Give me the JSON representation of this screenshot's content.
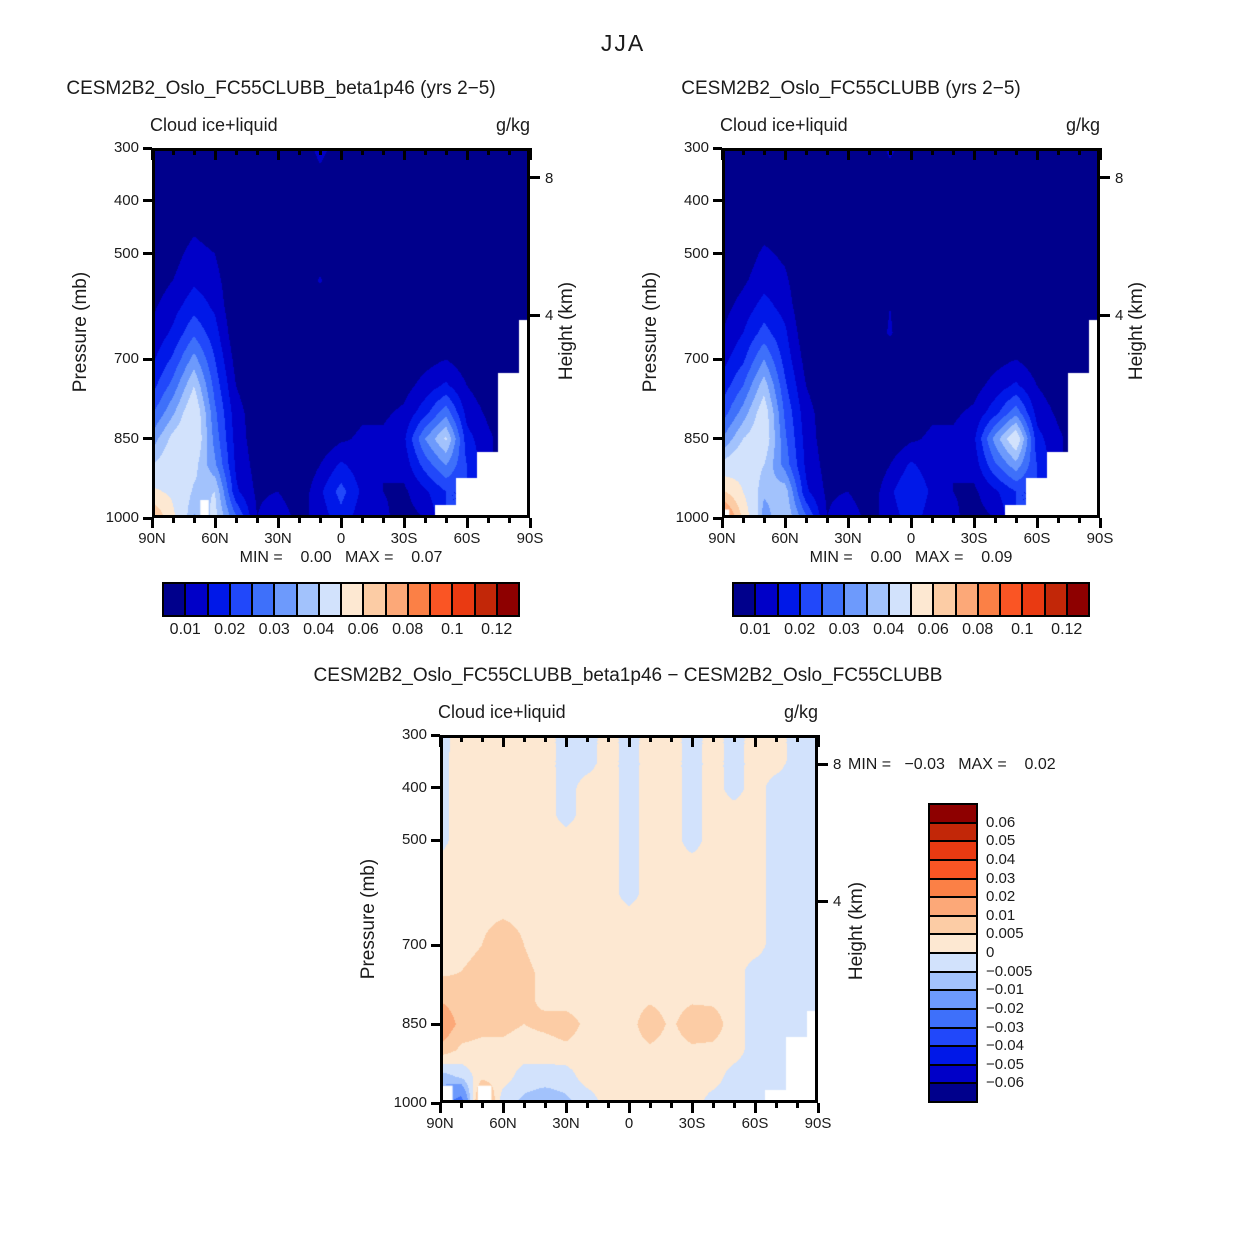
{
  "figure_title": "JJA",
  "palette": [
    "#00008C",
    "#0000C8",
    "#0018E8",
    "#2148FA",
    "#3E70FA",
    "#6D9AFC",
    "#A2C2FC",
    "#D2E2FC",
    "#FDE8D2",
    "#FCCCA5",
    "#FCA878",
    "#FB8046",
    "#FA5524",
    "#E93A12",
    "#C22708",
    "#8E0000"
  ],
  "axes": {
    "pressure_label": "Pressure (mb)",
    "height_label": "Height (km)",
    "pressure_ticks": [
      300,
      400,
      500,
      700,
      850,
      1000
    ],
    "pressure_range": [
      300,
      1000
    ],
    "lat_ticks": [
      {
        "label": "90N",
        "lat": 90
      },
      {
        "label": "60N",
        "lat": 60
      },
      {
        "label": "30N",
        "lat": 30
      },
      {
        "label": "0",
        "lat": 0
      },
      {
        "label": "30S",
        "lat": -30
      },
      {
        "label": "60S",
        "lat": -60
      },
      {
        "label": "90S",
        "lat": -90
      }
    ],
    "lat_minor_step": 10,
    "height_ticks": [
      {
        "label": "8",
        "mb": 356
      },
      {
        "label": "4",
        "mb": 616
      }
    ]
  },
  "labelbar_top": {
    "labels": [
      "0.01",
      "0.02",
      "0.03",
      "0.04",
      "0.06",
      "0.08",
      "0.1",
      "0.12"
    ],
    "boundary_indices": [
      1,
      3,
      5,
      7,
      9,
      11,
      13,
      15
    ]
  },
  "labelbar_diff": {
    "labels": [
      "0.06",
      "0.05",
      "0.04",
      "0.03",
      "0.02",
      "0.01",
      "0.005",
      "0",
      "−0.005",
      "−0.01",
      "−0.02",
      "−0.03",
      "−0.04",
      "−0.05",
      "−0.06"
    ]
  },
  "panels": [
    {
      "title": "CESM2B2_Oslo_FC55CLUBB_beta1p46 (yrs 2−5)",
      "subtitle_left": "Cloud ice+liquid",
      "units": "g/kg",
      "minmax": "MIN =    0.00   MAX =    0.07"
    },
    {
      "title": "CESM2B2_Oslo_FC55CLUBB (yrs 2−5)",
      "subtitle_left": "Cloud ice+liquid",
      "units": "g/kg",
      "minmax": "MIN =    0.00   MAX =    0.09"
    },
    {
      "title": "CESM2B2_Oslo_FC55CLUBB_beta1p46 − CESM2B2_Oslo_FC55CLUBB",
      "subtitle_left": "Cloud ice+liquid",
      "units": "g/kg",
      "minmax": "MIN =   −0.03   MAX =    0.02"
    }
  ],
  "chart_data": [
    {
      "type": "heatmap",
      "title": "CESM2B2_Oslo_FC55CLUBB_beta1p46 (yrs 2−5)",
      "variable": "Cloud ice+liquid",
      "units": "g/kg",
      "value_units": "1e-3 g/kg",
      "min_label": "0.00",
      "max_label": "0.07",
      "lats": [
        90,
        80,
        70,
        60,
        50,
        40,
        30,
        20,
        10,
        0,
        -10,
        -20,
        -30,
        -40,
        -50,
        -60,
        -70,
        -80,
        -90
      ],
      "pressures_mb": [
        300,
        350,
        400,
        450,
        500,
        550,
        600,
        650,
        700,
        750,
        800,
        850,
        900,
        950,
        1000
      ],
      "levels_g_per_kg": [
        0.01,
        0.015,
        0.02,
        0.025,
        0.03,
        0.035,
        0.04,
        0.05,
        0.06,
        0.07,
        0.08,
        0.09,
        0.1,
        0.11,
        0.12
      ],
      "values_milli_g_per_kg": [
        [
          3,
          3,
          3,
          3,
          3,
          3,
          3,
          3,
          13,
          5,
          3,
          3,
          3,
          3,
          3,
          3,
          3,
          3,
          3
        ],
        [
          3,
          3,
          4,
          4,
          3,
          3,
          3,
          3,
          8,
          4,
          3,
          3,
          3,
          3,
          3,
          3,
          3,
          3,
          3
        ],
        [
          4,
          4,
          6,
          5,
          3,
          3,
          3,
          3,
          4,
          3,
          3,
          3,
          3,
          3,
          3,
          3,
          3,
          3,
          3
        ],
        [
          4,
          6,
          9,
          7,
          4,
          3,
          3,
          3,
          3,
          3,
          3,
          3,
          3,
          3,
          3,
          3,
          3,
          3,
          3
        ],
        [
          5,
          8,
          12,
          10,
          4,
          3,
          3,
          3,
          3,
          3,
          3,
          3,
          3,
          3,
          3,
          3,
          4,
          4,
          4
        ],
        [
          7,
          10,
          14,
          12,
          5,
          4,
          3,
          3,
          11,
          3,
          3,
          3,
          3,
          3,
          4,
          4,
          4,
          4,
          4
        ],
        [
          9,
          13,
          18,
          14,
          5,
          4,
          4,
          3,
          4,
          3,
          3,
          3,
          3,
          4,
          5,
          4,
          4,
          5,
          5
        ],
        [
          11,
          16,
          24,
          17,
          6,
          5,
          4,
          4,
          3,
          3,
          4,
          4,
          4,
          5,
          7,
          5,
          5,
          6,
          null
        ],
        [
          14,
          21,
          32,
          20,
          8,
          5,
          4,
          4,
          4,
          4,
          5,
          5,
          6,
          8,
          10,
          7,
          6,
          7,
          null
        ],
        [
          18,
          27,
          40,
          23,
          10,
          6,
          5,
          4,
          4,
          5,
          7,
          7,
          8,
          12,
          16,
          10,
          7,
          null,
          null
        ],
        [
          24,
          34,
          46,
          26,
          12,
          7,
          5,
          4,
          5,
          7,
          9,
          9,
          11,
          18,
          28,
          13,
          9,
          null,
          null
        ],
        [
          32,
          42,
          47,
          28,
          13,
          7,
          6,
          5,
          6,
          9,
          11,
          11,
          14,
          30,
          41,
          17,
          11,
          null,
          null
        ],
        [
          40,
          45,
          42,
          31,
          14,
          8,
          6,
          5,
          10,
          16,
          12,
          10,
          12,
          22,
          30,
          20,
          null,
          null,
          null
        ],
        [
          52,
          48,
          39,
          40,
          16,
          9,
          10,
          6,
          14,
          22,
          14,
          10,
          9,
          14,
          20,
          null,
          null,
          null,
          null
        ],
        [
          72,
          52,
          34,
          42,
          26,
          10,
          14,
          8,
          12,
          18,
          12,
          11,
          8,
          10,
          null,
          null,
          null,
          null,
          null
        ]
      ],
      "masked_boxes": [
        {
          "lat": [
            67,
            63
          ],
          "p": [
            966,
            1000
          ]
        }
      ]
    },
    {
      "type": "heatmap",
      "title": "CESM2B2_Oslo_FC55CLUBB (yrs 2−5)",
      "variable": "Cloud ice+liquid",
      "units": "g/kg",
      "value_units": "1e-3 g/kg",
      "min_label": "0.00",
      "max_label": "0.09",
      "lats": [
        90,
        80,
        70,
        60,
        50,
        40,
        30,
        20,
        10,
        0,
        -10,
        -20,
        -30,
        -40,
        -50,
        -60,
        -70,
        -80,
        -90
      ],
      "pressures_mb": [
        300,
        350,
        400,
        450,
        500,
        550,
        600,
        650,
        700,
        750,
        800,
        850,
        900,
        950,
        1000
      ],
      "levels_g_per_kg": [
        0.01,
        0.015,
        0.02,
        0.025,
        0.03,
        0.035,
        0.04,
        0.05,
        0.06,
        0.07,
        0.08,
        0.09,
        0.1,
        0.11,
        0.12
      ],
      "values_milli_g_per_kg": [
        [
          3,
          3,
          3,
          3,
          3,
          3,
          3,
          3,
          12,
          5,
          3,
          3,
          3,
          3,
          3,
          3,
          3,
          3,
          3
        ],
        [
          3,
          3,
          4,
          4,
          3,
          3,
          3,
          3,
          7,
          4,
          3,
          3,
          3,
          3,
          3,
          3,
          3,
          3,
          3
        ],
        [
          4,
          4,
          5,
          5,
          3,
          3,
          3,
          3,
          4,
          3,
          3,
          3,
          3,
          3,
          3,
          3,
          3,
          3,
          3
        ],
        [
          4,
          5,
          8,
          7,
          4,
          3,
          3,
          3,
          3,
          3,
          3,
          3,
          3,
          3,
          3,
          3,
          3,
          3,
          3
        ],
        [
          5,
          7,
          11,
          9,
          4,
          3,
          3,
          3,
          3,
          3,
          3,
          3,
          3,
          3,
          3,
          3,
          4,
          4,
          4
        ],
        [
          6,
          9,
          13,
          11,
          5,
          4,
          3,
          3,
          4,
          3,
          3,
          3,
          3,
          3,
          4,
          4,
          4,
          4,
          4
        ],
        [
          8,
          12,
          17,
          13,
          5,
          4,
          4,
          3,
          10,
          3,
          3,
          3,
          3,
          4,
          5,
          4,
          4,
          5,
          5
        ],
        [
          10,
          15,
          22,
          16,
          6,
          5,
          4,
          4,
          11,
          3,
          4,
          4,
          4,
          5,
          7,
          5,
          5,
          6,
          null
        ],
        [
          13,
          19,
          30,
          18,
          8,
          5,
          4,
          4,
          4,
          4,
          5,
          5,
          6,
          8,
          10,
          7,
          6,
          7,
          null
        ],
        [
          17,
          25,
          38,
          21,
          10,
          6,
          5,
          4,
          4,
          5,
          7,
          7,
          8,
          12,
          16,
          10,
          7,
          null,
          null
        ],
        [
          22,
          32,
          44,
          24,
          12,
          7,
          5,
          4,
          5,
          7,
          9,
          9,
          11,
          18,
          28,
          13,
          9,
          null,
          null
        ],
        [
          30,
          40,
          45,
          26,
          13,
          7,
          6,
          5,
          6,
          9,
          11,
          11,
          14,
          32,
          46,
          17,
          11,
          null,
          null
        ],
        [
          42,
          46,
          40,
          28,
          14,
          8,
          6,
          5,
          10,
          16,
          12,
          10,
          12,
          24,
          33,
          20,
          null,
          null,
          null
        ],
        [
          62,
          50,
          36,
          38,
          16,
          9,
          10,
          6,
          14,
          20,
          14,
          10,
          9,
          14,
          20,
          null,
          null,
          null,
          null
        ],
        [
          92,
          58,
          32,
          40,
          26,
          10,
          14,
          8,
          12,
          18,
          12,
          11,
          8,
          10,
          null,
          null,
          null,
          null,
          null
        ]
      ],
      "masked_boxes": [
        {
          "lat": [
            89.5,
            86.5
          ],
          "p": [
            984,
            1000
          ]
        }
      ]
    },
    {
      "type": "heatmap",
      "title": "CESM2B2_Oslo_FC55CLUBB_beta1p46 − CESM2B2_Oslo_FC55CLUBB",
      "variable": "Cloud ice+liquid",
      "units": "g/kg",
      "value_units": "1e-3 g/kg",
      "min_label": "−0.03",
      "max_label": "0.02",
      "lats": [
        90,
        80,
        70,
        60,
        50,
        40,
        30,
        20,
        10,
        0,
        -10,
        -20,
        -30,
        -40,
        -50,
        -60,
        -70,
        -80,
        -90
      ],
      "pressures_mb": [
        300,
        350,
        400,
        450,
        500,
        550,
        600,
        650,
        700,
        750,
        800,
        850,
        900,
        950,
        1000
      ],
      "levels_g_per_kg": [
        -0.06,
        -0.05,
        -0.04,
        -0.03,
        -0.02,
        -0.01,
        -0.005,
        0,
        0.005,
        0.01,
        0.02,
        0.03,
        0.04,
        0.05,
        0.06
      ],
      "values_milli_g_per_kg": [
        [
          -3,
          3,
          3,
          3,
          3,
          3,
          -3,
          -3,
          3,
          -3,
          3,
          3,
          -3,
          3,
          -3,
          3,
          3,
          -3,
          -3
        ],
        [
          -3,
          4,
          4,
          3,
          3,
          3,
          -3,
          -3,
          3,
          -3,
          3,
          3,
          -3,
          3,
          -3,
          3,
          3,
          -3,
          -3
        ],
        [
          -3,
          4,
          4,
          3,
          3,
          3,
          -3,
          3,
          3,
          -3,
          3,
          3,
          -3,
          3,
          -3,
          3,
          -3,
          -3,
          -3
        ],
        [
          -3,
          4,
          4,
          3,
          3,
          3,
          -3,
          3,
          3,
          -3,
          3,
          3,
          -3,
          3,
          3,
          3,
          -3,
          -3,
          -3
        ],
        [
          -3,
          4,
          4,
          4,
          3,
          3,
          3,
          3,
          3,
          -3,
          3,
          3,
          -3,
          3,
          3,
          3,
          -3,
          -3,
          -3
        ],
        [
          3,
          4,
          4,
          4,
          3,
          3,
          3,
          3,
          3,
          -3,
          3,
          3,
          3,
          3,
          3,
          3,
          -3,
          -3,
          -3
        ],
        [
          3,
          4,
          4,
          4,
          3,
          3,
          3,
          3,
          3,
          -3,
          3,
          3,
          3,
          3,
          3,
          3,
          -3,
          -3,
          -3
        ],
        [
          3,
          4,
          4,
          5,
          4,
          3,
          3,
          3,
          3,
          3,
          3,
          3,
          3,
          3,
          3,
          3,
          -3,
          -3,
          -3
        ],
        [
          4,
          4,
          5,
          8,
          5,
          3,
          3,
          3,
          3,
          3,
          3,
          3,
          3,
          3,
          3,
          3,
          -3,
          -3,
          -3
        ],
        [
          4,
          5,
          6,
          9,
          6,
          4,
          3,
          3,
          3,
          3,
          3,
          3,
          3,
          3,
          3,
          -3,
          -3,
          -3,
          -3
        ],
        [
          9,
          7,
          6,
          8,
          6,
          4,
          3,
          3,
          3,
          3,
          4,
          3,
          4,
          4,
          3,
          -3,
          -3,
          -3,
          -3
        ],
        [
          16,
          8,
          7,
          6,
          5,
          6,
          7,
          4,
          3,
          3,
          8,
          4,
          8,
          7,
          3,
          -3,
          -3,
          -3,
          null
        ],
        [
          8,
          4,
          3,
          4,
          3,
          3,
          4,
          3,
          3,
          3,
          4,
          3,
          4,
          4,
          3,
          -3,
          -3,
          null,
          null
        ],
        [
          -8,
          -4,
          3,
          3,
          -3,
          -3,
          -3,
          3,
          3,
          3,
          3,
          3,
          3,
          3,
          -3,
          -3,
          -3,
          null,
          null
        ],
        [
          -14,
          -26,
          20,
          -4,
          -6,
          -8,
          -6,
          -4,
          3,
          3,
          3,
          3,
          3,
          -3,
          -3,
          -3,
          null,
          null,
          null
        ]
      ],
      "masked_boxes": [
        {
          "lat": [
            89.5,
            84
          ],
          "p": [
            967,
            1000
          ]
        },
        {
          "lat": [
            72,
            65.5
          ],
          "p": [
            967,
            1000
          ]
        }
      ]
    }
  ]
}
